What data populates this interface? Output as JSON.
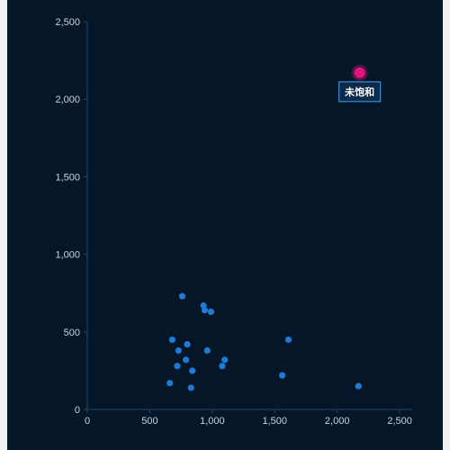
{
  "chart_data": {
    "type": "scatter",
    "title": "",
    "xlabel": "",
    "ylabel": "",
    "xlim": [
      0,
      2600
    ],
    "ylim": [
      0,
      2500
    ],
    "x_ticks": [
      "0",
      "500",
      "1,000",
      "1,500",
      "2,000",
      "2,500"
    ],
    "y_ticks": [
      "0",
      "500",
      "1,000",
      "1,500",
      "2,000",
      "2,500"
    ],
    "x_tick_values": [
      0,
      500,
      1000,
      1500,
      2000,
      2500
    ],
    "y_tick_values": [
      0,
      500,
      1000,
      1500,
      2000,
      2500
    ],
    "grid": false,
    "series": [
      {
        "color": "#1f7ad6",
        "points": [
          [
            760,
            730
          ],
          [
            930,
            670
          ],
          [
            940,
            640
          ],
          [
            990,
            630
          ],
          [
            680,
            450
          ],
          [
            800,
            420
          ],
          [
            1610,
            450
          ],
          [
            730,
            380
          ],
          [
            960,
            380
          ],
          [
            790,
            320
          ],
          [
            1100,
            320
          ],
          [
            720,
            280
          ],
          [
            1080,
            280
          ],
          [
            840,
            250
          ],
          [
            1560,
            220
          ],
          [
            660,
            170
          ],
          [
            830,
            140
          ],
          [
            2170,
            150
          ]
        ]
      }
    ],
    "highlight": {
      "x": 2180,
      "y": 2170,
      "color": "#e0157a",
      "label": "未饱和"
    }
  },
  "colors": {
    "background": "#061629",
    "axis": "#1d4a6e",
    "point": "#1f7ad6",
    "highlight": "#e0157a",
    "annotation_border": "#4aa3e8",
    "annotation_fill": "#0c2a4a"
  }
}
